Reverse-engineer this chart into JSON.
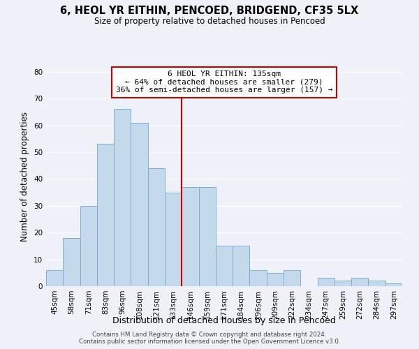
{
  "title": "6, HEOL YR EITHIN, PENCOED, BRIDGEND, CF35 5LX",
  "subtitle": "Size of property relative to detached houses in Pencoed",
  "xlabel": "Distribution of detached houses by size in Pencoed",
  "ylabel": "Number of detached properties",
  "categories": [
    "45sqm",
    "58sqm",
    "71sqm",
    "83sqm",
    "96sqm",
    "108sqm",
    "121sqm",
    "133sqm",
    "146sqm",
    "159sqm",
    "171sqm",
    "184sqm",
    "196sqm",
    "209sqm",
    "222sqm",
    "234sqm",
    "247sqm",
    "259sqm",
    "272sqm",
    "284sqm",
    "297sqm"
  ],
  "values": [
    6,
    18,
    30,
    53,
    66,
    61,
    44,
    35,
    37,
    37,
    15,
    15,
    6,
    5,
    6,
    0,
    3,
    2,
    3,
    2,
    1
  ],
  "bar_color": "#c5d9ed",
  "bar_edge_color": "#7bafd4",
  "vline_x": 7.5,
  "vline_color": "#cc0000",
  "annotation_line1": "6 HEOL YR EITHIN: 135sqm",
  "annotation_line2": "← 64% of detached houses are smaller (279)",
  "annotation_line3": "36% of semi-detached houses are larger (157) →",
  "annotation_box_color": "#ffffff",
  "annotation_box_edge": "#cc0000",
  "ylim": [
    0,
    82
  ],
  "yticks": [
    0,
    10,
    20,
    30,
    40,
    50,
    60,
    70,
    80
  ],
  "background_color": "#eef2f8",
  "grid_color": "#ffffff",
  "footer_line1": "Contains HM Land Registry data © Crown copyright and database right 2024.",
  "footer_line2": "Contains public sector information licensed under the Open Government Licence v3.0."
}
